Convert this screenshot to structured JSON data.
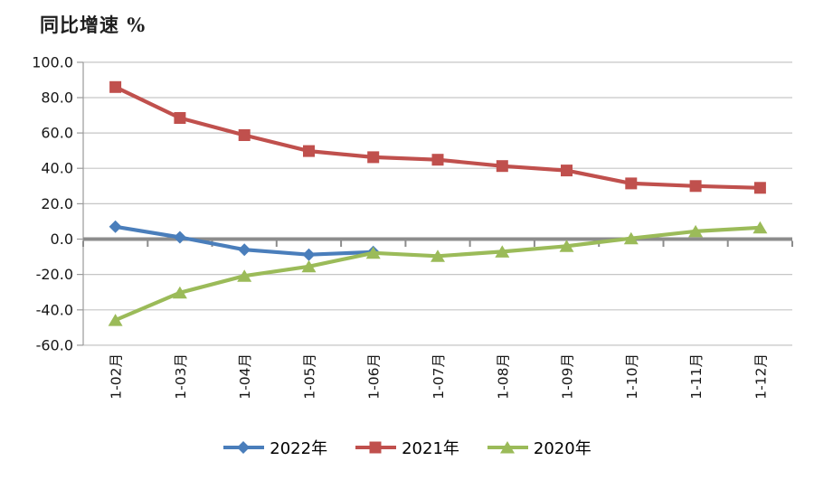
{
  "title": "同比增速 %",
  "chart_data": {
    "type": "line",
    "categories": [
      "1-02月",
      "1-03月",
      "1-04月",
      "1-05月",
      "1-06月",
      "1-07月",
      "1-08月",
      "1-09月",
      "1-10月",
      "1-11月",
      "1-12月"
    ],
    "series": [
      {
        "name": "2022年",
        "color": "#4A7EBB",
        "marker": "diamond",
        "values": [
          7.0,
          1.0,
          -6.0,
          -8.8,
          -7.3,
          null,
          null,
          null,
          null,
          null,
          null
        ]
      },
      {
        "name": "2021年",
        "color": "#C0504D",
        "marker": "square",
        "values": [
          86.0,
          68.5,
          58.8,
          49.8,
          46.3,
          44.9,
          41.3,
          38.8,
          31.5,
          30.0,
          29.0
        ]
      },
      {
        "name": "2020年",
        "color": "#9BBB59",
        "marker": "triangle",
        "values": [
          -45.8,
          -30.3,
          -20.8,
          -15.5,
          -7.8,
          -9.6,
          -7.1,
          -4.0,
          0.4,
          4.4,
          6.5
        ]
      }
    ],
    "ylabel": "同比增速 %",
    "xlabel": "",
    "ylim": [
      -60,
      100
    ],
    "ytick_step": 20,
    "ytick_labels": [
      "100.0",
      "80.0",
      "60.0",
      "40.0",
      "20.0",
      "0.0",
      "-20.0",
      "-40.0",
      "-60.0"
    ],
    "grid": true,
    "legend_position": "bottom",
    "gridline_color": "#C6C6C6",
    "axis_color": "#8C8C8C",
    "tick_label_color": "#171717"
  }
}
